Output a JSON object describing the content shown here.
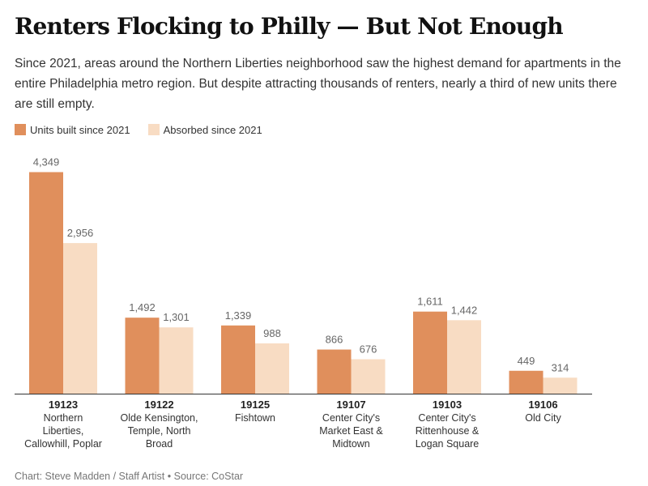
{
  "title": "Renters Flocking to Philly — But Not Enough",
  "subtitle": "Since 2021, areas around the Northern Liberties neighborhood saw the highest demand for apartments in the entire Philadelphia metro region. But despite attracting thousands of renters, nearly a third of new units there are still empty.",
  "source": "Chart: Steve Madden / Staff Artist • Source: CoStar",
  "chart_data": {
    "type": "bar",
    "categories": [
      "19123",
      "19122",
      "19125",
      "19107",
      "19103",
      "19106"
    ],
    "category_names": [
      [
        "Northern",
        "Liberties,",
        "Callowhill, Poplar"
      ],
      [
        "Olde Kensington,",
        "Temple, North",
        "Broad"
      ],
      [
        "Fishtown"
      ],
      [
        "Center City's",
        "Market East &",
        "Midtown"
      ],
      [
        "Center City's",
        "Rittenhouse &",
        "Logan Square"
      ],
      [
        "Old City"
      ]
    ],
    "series": [
      {
        "name": "Units built since 2021",
        "values": [
          4349,
          1492,
          1339,
          866,
          1611,
          449
        ],
        "labels": [
          "4,349",
          "1,492",
          "1,339",
          "866",
          "1,611",
          "449"
        ],
        "color": "#e08f5c"
      },
      {
        "name": "Absorbed since 2021",
        "values": [
          2956,
          1301,
          988,
          676,
          1442,
          314
        ],
        "labels": [
          "2,956",
          "1,301",
          "988",
          "676",
          "1,442",
          "314"
        ],
        "color": "#f8dcc3"
      }
    ],
    "ylim": [
      0,
      4500
    ],
    "grid": false,
    "legend": "top-left"
  }
}
